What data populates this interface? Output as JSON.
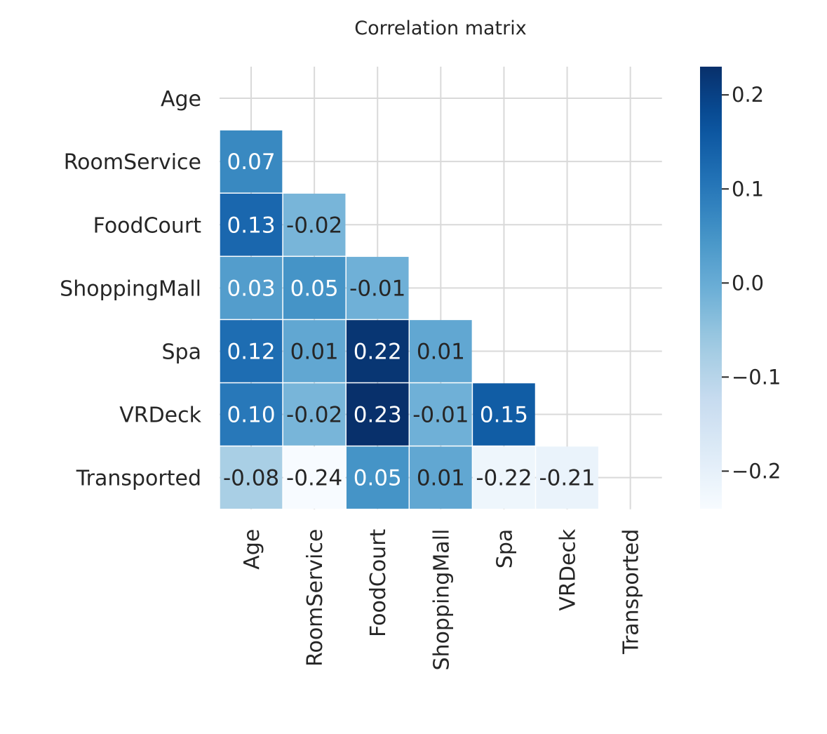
{
  "chart_data": {
    "type": "heatmap",
    "title": "Correlation matrix",
    "variables": [
      "Age",
      "RoomService",
      "FoodCourt",
      "ShoppingMall",
      "Spa",
      "VRDeck",
      "Transported"
    ],
    "mask": "upper-triangle-including-diagonal",
    "colormap": "Blues",
    "vmin": -0.24,
    "vmax": 0.23,
    "colorbar_ticks": [
      0.2,
      0.1,
      0.0,
      -0.1,
      -0.2
    ],
    "colorbar_tick_labels": [
      "0.2",
      "0.1",
      "0.0",
      "−0.1",
      "−0.2"
    ],
    "grid": true,
    "cells": [
      {
        "row": "RoomService",
        "col": "Age",
        "value": 0.07,
        "label": "0.07"
      },
      {
        "row": "FoodCourt",
        "col": "Age",
        "value": 0.13,
        "label": "0.13"
      },
      {
        "row": "FoodCourt",
        "col": "RoomService",
        "value": -0.02,
        "label": "-0.02"
      },
      {
        "row": "ShoppingMall",
        "col": "Age",
        "value": 0.03,
        "label": "0.03"
      },
      {
        "row": "ShoppingMall",
        "col": "RoomService",
        "value": 0.05,
        "label": "0.05"
      },
      {
        "row": "ShoppingMall",
        "col": "FoodCourt",
        "value": -0.01,
        "label": "-0.01"
      },
      {
        "row": "Spa",
        "col": "Age",
        "value": 0.12,
        "label": "0.12"
      },
      {
        "row": "Spa",
        "col": "RoomService",
        "value": 0.01,
        "label": "0.01"
      },
      {
        "row": "Spa",
        "col": "FoodCourt",
        "value": 0.22,
        "label": "0.22"
      },
      {
        "row": "Spa",
        "col": "ShoppingMall",
        "value": 0.01,
        "label": "0.01"
      },
      {
        "row": "VRDeck",
        "col": "Age",
        "value": 0.1,
        "label": "0.10"
      },
      {
        "row": "VRDeck",
        "col": "RoomService",
        "value": -0.02,
        "label": "-0.02"
      },
      {
        "row": "VRDeck",
        "col": "FoodCourt",
        "value": 0.23,
        "label": "0.23"
      },
      {
        "row": "VRDeck",
        "col": "ShoppingMall",
        "value": -0.01,
        "label": "-0.01"
      },
      {
        "row": "VRDeck",
        "col": "Spa",
        "value": 0.15,
        "label": "0.15"
      },
      {
        "row": "Transported",
        "col": "Age",
        "value": -0.08,
        "label": "-0.08"
      },
      {
        "row": "Transported",
        "col": "RoomService",
        "value": -0.24,
        "label": "-0.24"
      },
      {
        "row": "Transported",
        "col": "FoodCourt",
        "value": 0.05,
        "label": "0.05"
      },
      {
        "row": "Transported",
        "col": "ShoppingMall",
        "value": 0.01,
        "label": "0.01"
      },
      {
        "row": "Transported",
        "col": "Spa",
        "value": -0.22,
        "label": "-0.22"
      },
      {
        "row": "Transported",
        "col": "VRDeck",
        "value": -0.21,
        "label": "-0.21"
      }
    ]
  }
}
